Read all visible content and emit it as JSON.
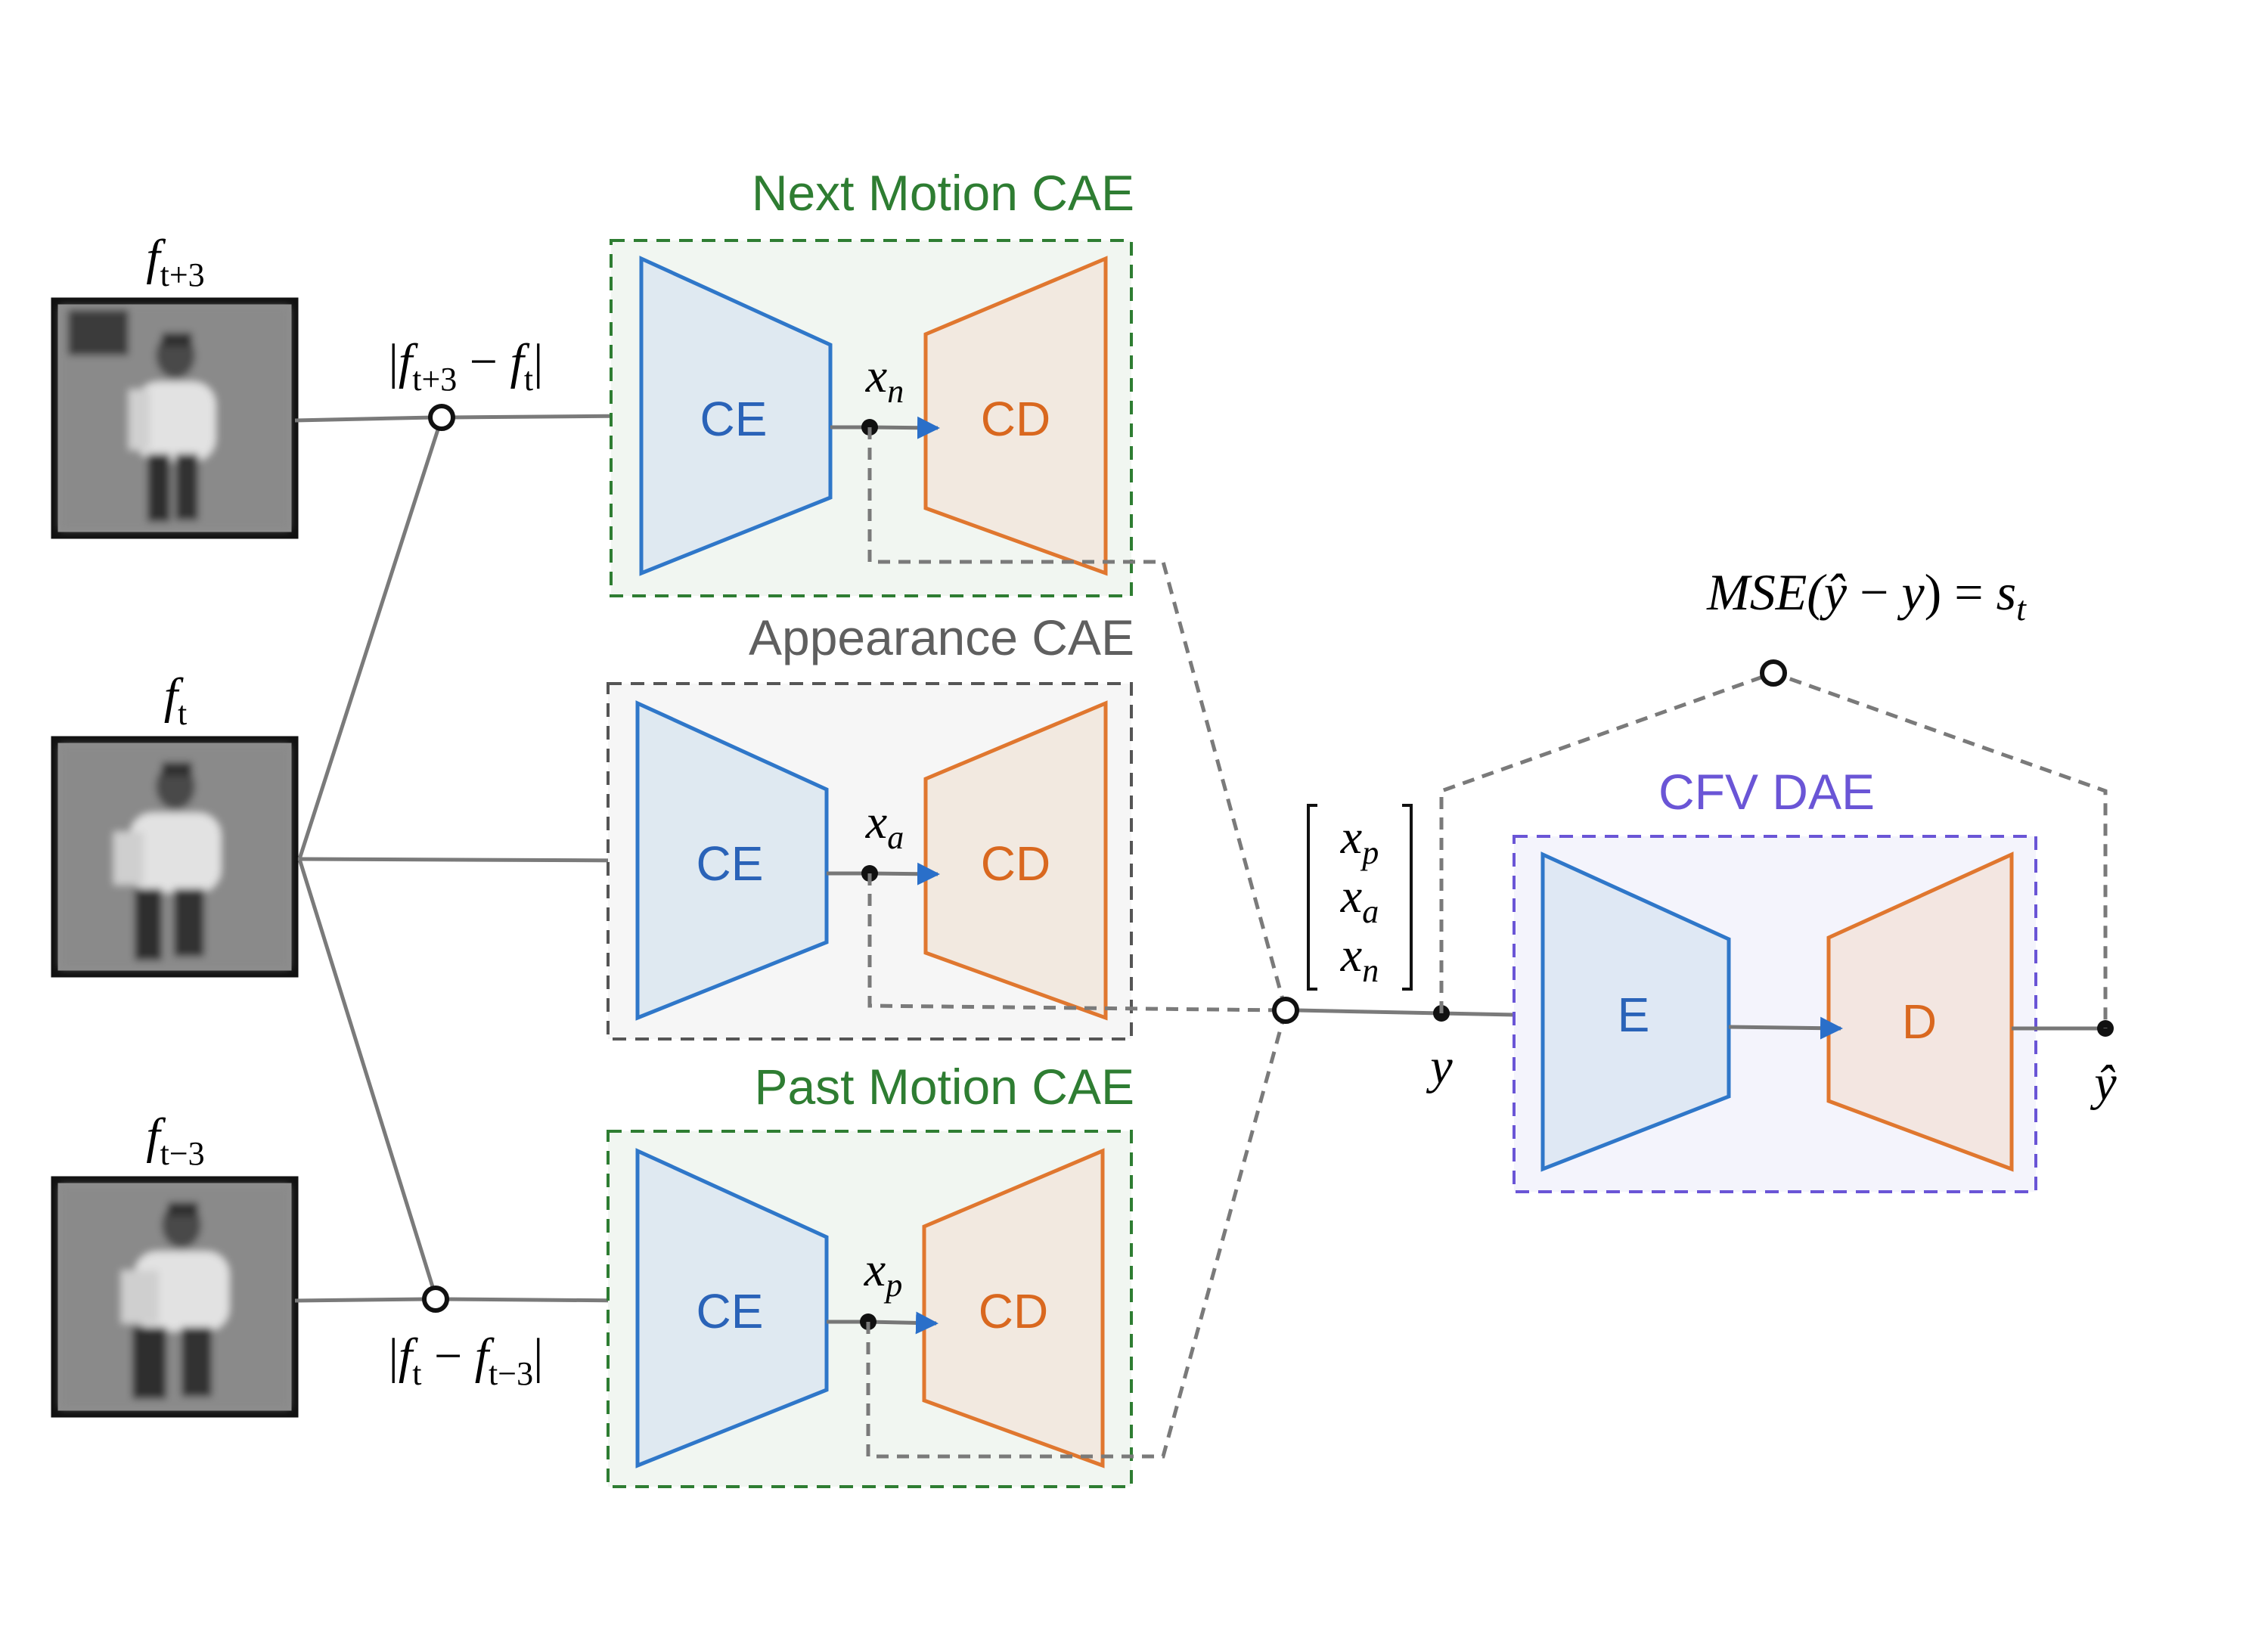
{
  "frames": {
    "future": {
      "label_base": "f",
      "label_sub": "t+3"
    },
    "current": {
      "label_base": "f",
      "label_sub": "t"
    },
    "past": {
      "label_base": "f",
      "label_sub": "t−3"
    }
  },
  "operations": {
    "next_diff": {
      "open": "|",
      "a": "f",
      "a_sub": "t+3",
      "minus": " − ",
      "b": "f",
      "b_sub": "t",
      "close": "|"
    },
    "past_diff": {
      "open": "|",
      "a": "f",
      "a_sub": "t",
      "minus": " − ",
      "b": "f",
      "b_sub": "t−3",
      "close": "|"
    }
  },
  "modules": {
    "next_motion": {
      "title": "Next Motion CAE",
      "encoder": "CE",
      "decoder": "CD",
      "latent_base": "x",
      "latent_sub": "n"
    },
    "appearance": {
      "title": "Appearance CAE",
      "encoder": "CE",
      "decoder": "CD",
      "latent_base": "x",
      "latent_sub": "a"
    },
    "past_motion": {
      "title": "Past Motion CAE",
      "encoder": "CE",
      "decoder": "CD",
      "latent_base": "x",
      "latent_sub": "p"
    },
    "cfv_dae": {
      "title": "CFV DAE",
      "encoder": "E",
      "decoder": "D"
    }
  },
  "concat_vector": {
    "rows": [
      {
        "base": "x",
        "sub": "p"
      },
      {
        "base": "x",
        "sub": "a"
      },
      {
        "base": "x",
        "sub": "n"
      }
    ]
  },
  "signals": {
    "y": "y",
    "y_hat": "ŷ",
    "mse": {
      "prefix": "MSE(",
      "yhat": "ŷ",
      "minus": " − ",
      "y": "y",
      "suffix": ") = ",
      "s": "s",
      "s_sub": "t"
    }
  },
  "colors": {
    "green": "#2e7d32",
    "gray": "#666666",
    "purple": "#6a55d6",
    "blue": "#2a6fc9",
    "orange": "#e0772f"
  }
}
